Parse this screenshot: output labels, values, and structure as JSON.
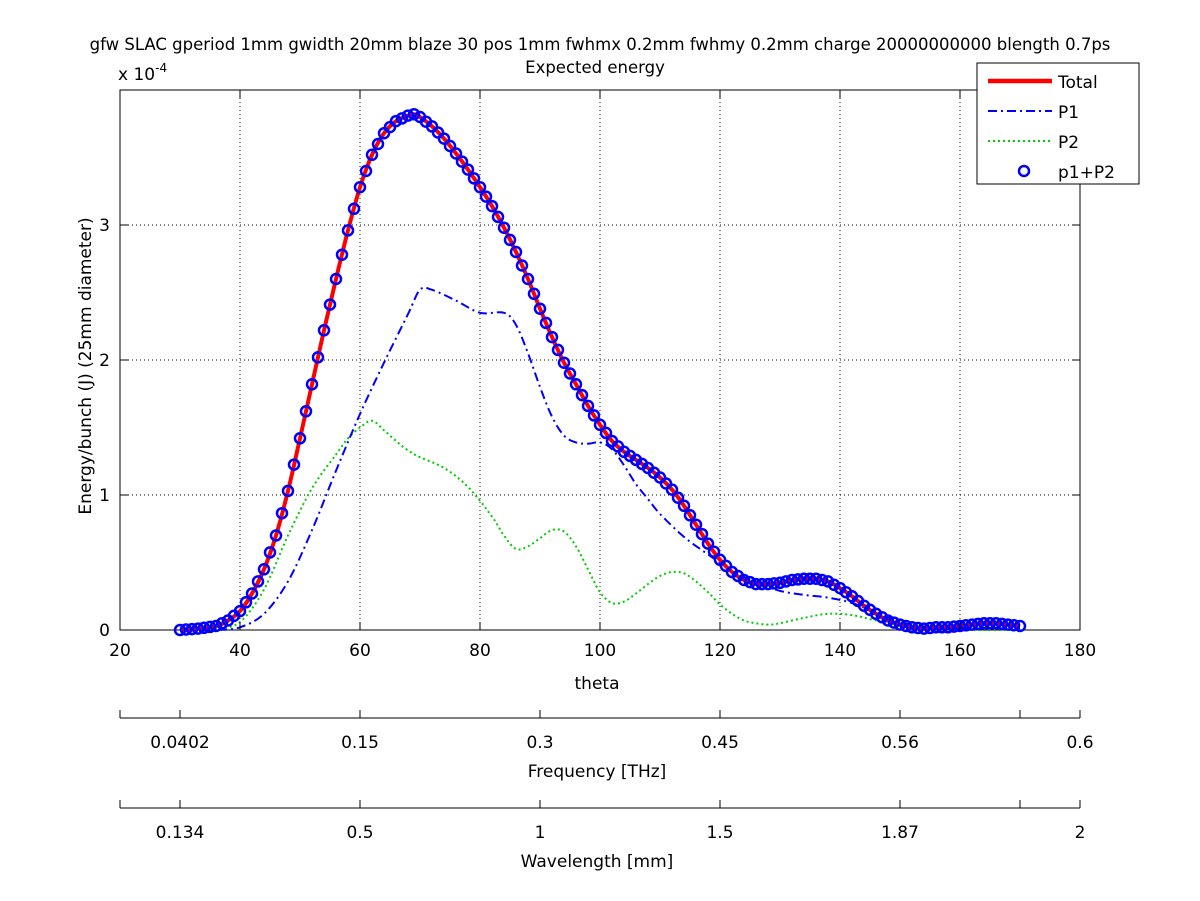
{
  "chart_data": {
    "type": "line",
    "title": "gfw SLAC gperiod 1mm gwidth 20mm blaze 30 pos 1mm fwhmx 0.2mm fwhmy 0.2mm charge 20000000000 blength 0.7ps",
    "subtitle": "Expected energy",
    "xlabel": "theta",
    "ylabel": "Energy/bunch (J) (25mm diameter)",
    "y_multiplier": "x 10",
    "y_exponent": "-4",
    "xlim": [
      20,
      180
    ],
    "ylim": [
      0,
      3.9
    ],
    "grid": true,
    "legend_position": "top-right",
    "x_ticks": [
      "20",
      "40",
      "60",
      "80",
      "100",
      "120",
      "140",
      "160",
      "180"
    ],
    "y_ticks": [
      "0",
      "1",
      "2",
      "3"
    ],
    "secondary_axes": [
      {
        "label": "Frequency [THz]",
        "tick_labels": [
          "0.0402",
          "0.15",
          "0.3",
          "0.45",
          "0.56",
          "0.6"
        ]
      },
      {
        "label": "Wavelength [mm]",
        "tick_labels": [
          "0.134",
          "0.5",
          "1",
          "1.5",
          "1.87",
          "2"
        ]
      }
    ],
    "secondary_tick_theta": [
      30,
      60,
      90,
      120,
      150,
      170
    ],
    "series": [
      {
        "name": "Total",
        "style": "solid",
        "color": "#ff0000",
        "x": [
          30,
          33,
          36,
          38,
          40,
          42,
          44,
          46,
          48,
          50,
          52,
          54,
          56,
          58,
          60,
          62,
          64,
          66,
          68,
          69,
          70,
          72,
          74,
          76,
          78,
          80,
          82,
          84,
          86,
          88,
          90,
          92,
          94,
          96,
          98,
          100,
          102,
          104,
          106,
          108,
          110,
          112,
          114,
          116,
          118,
          120,
          122,
          124,
          126,
          128,
          130,
          132,
          134,
          136,
          138,
          140,
          142,
          144,
          146,
          148,
          150,
          152,
          154,
          156,
          158,
          160,
          162,
          164,
          166,
          168,
          170
        ],
        "y": [
          0,
          0.01,
          0.03,
          0.07,
          0.14,
          0.27,
          0.45,
          0.7,
          1.03,
          1.42,
          1.82,
          2.22,
          2.6,
          2.96,
          3.28,
          3.52,
          3.68,
          3.77,
          3.81,
          3.82,
          3.8,
          3.73,
          3.64,
          3.53,
          3.41,
          3.28,
          3.14,
          2.98,
          2.8,
          2.6,
          2.38,
          2.17,
          1.98,
          1.82,
          1.66,
          1.52,
          1.4,
          1.32,
          1.26,
          1.2,
          1.13,
          1.04,
          0.92,
          0.78,
          0.64,
          0.52,
          0.43,
          0.37,
          0.34,
          0.34,
          0.35,
          0.37,
          0.38,
          0.38,
          0.36,
          0.31,
          0.25,
          0.18,
          0.12,
          0.07,
          0.04,
          0.02,
          0.01,
          0.02,
          0.02,
          0.03,
          0.04,
          0.05,
          0.05,
          0.04,
          0.03
        ]
      },
      {
        "name": "P1",
        "style": "dashdot",
        "color": "#0000ff",
        "x": [
          30,
          36,
          40,
          44,
          48,
          52,
          56,
          60,
          64,
          68,
          70,
          72,
          76,
          80,
          84,
          86,
          88,
          90,
          92,
          94,
          96,
          98,
          100,
          102,
          104,
          106,
          108,
          110,
          114,
          118,
          122,
          126,
          130,
          134,
          138,
          142,
          146,
          150,
          154,
          158,
          162,
          166,
          170
        ],
        "y": [
          0,
          0,
          0.02,
          0.12,
          0.36,
          0.74,
          1.18,
          1.6,
          1.98,
          2.34,
          2.52,
          2.52,
          2.44,
          2.35,
          2.35,
          2.26,
          2.05,
          1.8,
          1.58,
          1.44,
          1.39,
          1.38,
          1.39,
          1.34,
          1.22,
          1.08,
          0.97,
          0.86,
          0.69,
          0.56,
          0.44,
          0.35,
          0.29,
          0.26,
          0.24,
          0.2,
          0.13,
          0.06,
          0.02,
          0.01,
          0.01,
          0.01,
          0.01
        ]
      },
      {
        "name": "P2",
        "style": "dotted",
        "color": "#00cc00",
        "x": [
          30,
          36,
          40,
          44,
          48,
          52,
          56,
          58,
          60,
          62,
          64,
          66,
          68,
          70,
          74,
          78,
          82,
          84,
          86,
          88,
          90,
          92,
          94,
          96,
          98,
          100,
          102,
          104,
          106,
          108,
          110,
          112,
          114,
          116,
          118,
          120,
          122,
          124,
          126,
          128,
          130,
          134,
          138,
          142,
          146,
          150,
          154,
          158,
          162,
          166,
          170
        ],
        "y": [
          0,
          0.01,
          0.06,
          0.3,
          0.7,
          1.05,
          1.3,
          1.42,
          1.5,
          1.55,
          1.48,
          1.4,
          1.33,
          1.28,
          1.2,
          1.06,
          0.84,
          0.7,
          0.6,
          0.62,
          0.68,
          0.74,
          0.73,
          0.62,
          0.45,
          0.28,
          0.2,
          0.21,
          0.27,
          0.34,
          0.4,
          0.43,
          0.42,
          0.36,
          0.28,
          0.19,
          0.12,
          0.07,
          0.05,
          0.04,
          0.05,
          0.09,
          0.12,
          0.11,
          0.07,
          0.03,
          0.01,
          0,
          0,
          0,
          0
        ]
      },
      {
        "name": "p1+P2",
        "style": "markers",
        "color": "#0000ff",
        "marker_x_start": 30,
        "marker_x_end": 170,
        "marker_x_step": 1
      }
    ]
  }
}
